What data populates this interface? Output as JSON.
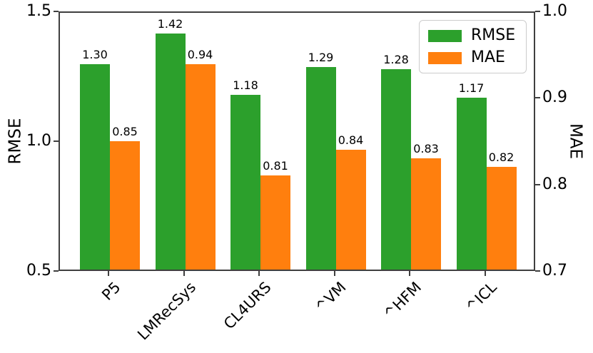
{
  "chart_data": {
    "type": "bar",
    "categories": [
      "P5",
      "LMRecSys",
      "CL4URS",
      "^VM",
      "^HFM",
      "^ICL"
    ],
    "series": [
      {
        "name": "RMSE",
        "axis": "left",
        "color": "#2ca02c",
        "values": [
          1.3,
          1.42,
          1.18,
          1.29,
          1.28,
          1.17
        ]
      },
      {
        "name": "MAE",
        "axis": "right",
        "color": "#ff7f0e",
        "values": [
          0.85,
          0.94,
          0.81,
          0.84,
          0.83,
          0.82
        ]
      }
    ],
    "bar_value_labels": {
      "RMSE": [
        "1.30",
        "1.42",
        "1.18",
        "1.29",
        "1.28",
        "1.17"
      ],
      "MAE": [
        "0.85",
        "0.94",
        "0.81",
        "0.84",
        "0.83",
        "0.82"
      ]
    },
    "left_axis": {
      "label": "RMSE",
      "lim": [
        0.5,
        1.5
      ],
      "ticks": [
        {
          "label": "1.5",
          "value": 1.5
        },
        {
          "label": "1.0",
          "value": 1.0
        },
        {
          "label": "0.5",
          "value": 0.5
        }
      ]
    },
    "right_axis": {
      "label": "MAE",
      "lim": [
        0.7,
        1.0
      ],
      "ticks": [
        {
          "label": "1.0",
          "value": 1.0
        },
        {
          "label": "0.9",
          "value": 0.9
        },
        {
          "label": "0.8",
          "value": 0.8
        },
        {
          "label": "0.7",
          "value": 0.7
        }
      ]
    },
    "legend": {
      "position": "upper right",
      "entries": [
        {
          "label": "RMSE",
          "color": "#2ca02c"
        },
        {
          "label": "MAE",
          "color": "#ff7f0e"
        }
      ]
    },
    "grid": false
  }
}
